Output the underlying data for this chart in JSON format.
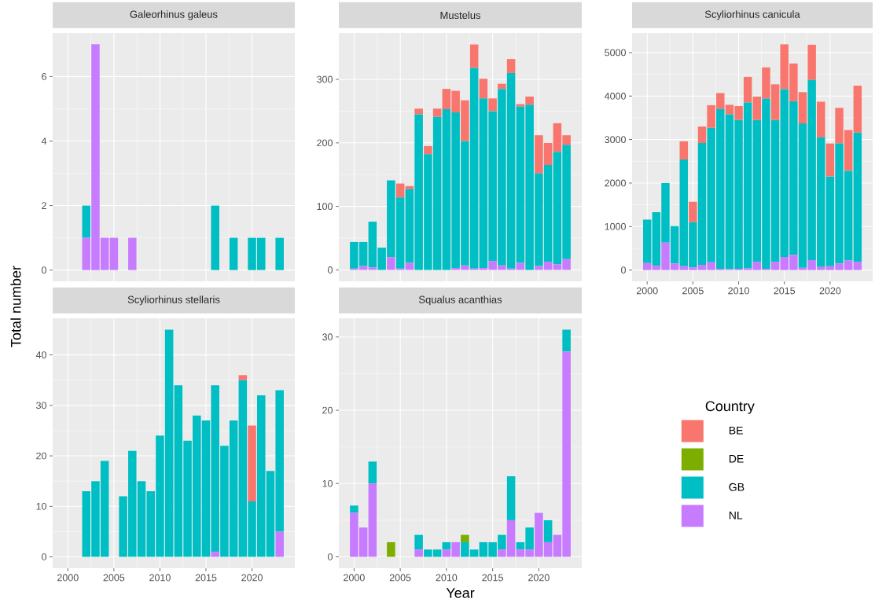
{
  "chart_data": [
    {
      "type": "bar",
      "title": "Galeorhinus galeus",
      "stacked": true,
      "grid": true,
      "tick_labels": "y",
      "ylabel": "Total number",
      "x": [
        2002,
        2003,
        2004,
        2005,
        2007,
        2016,
        2018,
        2020,
        2021,
        2023
      ],
      "xlim": [
        1998.35,
        2024.65
      ],
      "xticks": [
        2000,
        2005,
        2010,
        2015,
        2020
      ],
      "ylim": [
        -0.35,
        7.35
      ],
      "yticks": [
        0,
        2,
        4,
        6
      ],
      "series": [
        {
          "color": "#c77cff",
          "values": [
            1,
            7,
            1,
            1,
            1,
            null,
            null,
            null,
            null,
            null
          ]
        },
        {
          "color": "#00bfc4",
          "values": [
            1,
            null,
            null,
            null,
            null,
            2,
            1,
            1,
            1,
            1
          ]
        }
      ]
    },
    {
      "type": "bar",
      "title": "Mustelus",
      "stacked": true,
      "grid": true,
      "tick_labels": "y",
      "x": [
        2000,
        2001,
        2002,
        2003,
        2004,
        2005,
        2006,
        2007,
        2008,
        2009,
        2010,
        2011,
        2012,
        2013,
        2014,
        2015,
        2016,
        2017,
        2018,
        2019,
        2020,
        2021,
        2022,
        2023
      ],
      "xlim": [
        1998.35,
        2024.65
      ],
      "xticks": [
        2000,
        2005,
        2010,
        2015,
        2020
      ],
      "ylim": [
        -18,
        373
      ],
      "yticks": [
        0,
        100,
        200,
        300
      ],
      "series": [
        {
          "color": "#c77cff",
          "values": [
            2,
            6,
            4,
            null,
            20,
            2,
            11,
            null,
            null,
            null,
            null,
            3,
            7,
            2,
            3,
            14,
            7,
            2,
            11,
            null,
            6,
            13,
            9,
            17
          ]
        },
        {
          "color": "#00bfc4",
          "values": [
            42,
            38,
            72,
            35,
            121,
            112,
            116,
            245,
            182,
            241,
            253,
            245,
            196,
            316,
            267,
            236,
            278,
            308,
            246,
            260,
            146,
            152,
            177,
            180
          ]
        },
        {
          "color": "#f8766d",
          "values": [
            null,
            null,
            null,
            null,
            null,
            22,
            5,
            9,
            13,
            13,
            32,
            34,
            64,
            37,
            31,
            20,
            8,
            22,
            4,
            13,
            60,
            35,
            45,
            15
          ]
        }
      ]
    },
    {
      "type": "bar",
      "title": "Scyliorhinus canicula",
      "stacked": true,
      "grid": true,
      "x": [
        2000,
        2001,
        2002,
        2003,
        2004,
        2005,
        2006,
        2007,
        2008,
        2009,
        2010,
        2011,
        2012,
        2013,
        2014,
        2015,
        2016,
        2017,
        2018,
        2019,
        2020,
        2021,
        2022,
        2023
      ],
      "xlim": [
        1998.35,
        2024.65
      ],
      "xticks": [
        2000,
        2005,
        2010,
        2015,
        2020
      ],
      "ylim": [
        -260,
        5450
      ],
      "yticks": [
        0,
        1000,
        2000,
        3000,
        4000,
        5000
      ],
      "series": [
        {
          "color": "#c77cff",
          "values": [
            160,
            100,
            630,
            150,
            90,
            60,
            120,
            180,
            30,
            20,
            30,
            40,
            190,
            30,
            190,
            300,
            350,
            50,
            230,
            70,
            90,
            150,
            220,
            190
          ]
        },
        {
          "color": "#00bfc4",
          "values": [
            1000,
            1230,
            1370,
            860,
            2450,
            1040,
            2800,
            3090,
            3670,
            3560,
            3420,
            3810,
            3260,
            3910,
            3260,
            3860,
            3530,
            3320,
            4140,
            2980,
            2060,
            2760,
            2060,
            2970
          ]
        },
        {
          "color": "#f8766d",
          "values": [
            null,
            null,
            null,
            null,
            420,
            470,
            380,
            520,
            370,
            220,
            320,
            590,
            540,
            720,
            820,
            1030,
            870,
            720,
            810,
            820,
            760,
            820,
            940,
            1080
          ]
        }
      ]
    },
    {
      "type": "bar",
      "title": "Scyliorhinus stellaris",
      "stacked": true,
      "grid": true,
      "x": [
        2002,
        2003,
        2004,
        2006,
        2007,
        2008,
        2009,
        2010,
        2011,
        2012,
        2013,
        2014,
        2015,
        2016,
        2017,
        2018,
        2019,
        2020,
        2021,
        2022,
        2023
      ],
      "xlim": [
        1998.35,
        2024.65
      ],
      "xticks": [
        2000,
        2005,
        2010,
        2015,
        2020
      ],
      "ylim": [
        -2.25,
        47.25
      ],
      "yticks": [
        0,
        10,
        20,
        30,
        40
      ],
      "series": [
        {
          "color": "#c77cff",
          "values": [
            null,
            null,
            null,
            null,
            null,
            null,
            null,
            null,
            null,
            null,
            null,
            null,
            null,
            1,
            null,
            null,
            null,
            null,
            null,
            null,
            5
          ]
        },
        {
          "color": "#00bfc4",
          "values": [
            13,
            15,
            19,
            12,
            21,
            15,
            13,
            24,
            45,
            34,
            23,
            28,
            27,
            33,
            22,
            27,
            35,
            11,
            32,
            17,
            28
          ]
        },
        {
          "color": "#f8766d",
          "values": [
            null,
            null,
            null,
            null,
            null,
            null,
            null,
            null,
            null,
            null,
            null,
            null,
            null,
            null,
            null,
            null,
            1,
            15,
            null,
            null,
            null
          ]
        }
      ]
    },
    {
      "type": "bar",
      "title": "Squalus acanthias",
      "stacked": true,
      "grid": true,
      "xlabel": "Year",
      "legend": "right",
      "legend_title": "Country",
      "x": [
        2000,
        2001,
        2002,
        2004,
        2007,
        2008,
        2009,
        2010,
        2011,
        2012,
        2013,
        2014,
        2015,
        2016,
        2017,
        2018,
        2019,
        2020,
        2021,
        2022,
        2023
      ],
      "xlim": [
        1998.35,
        2024.65
      ],
      "xticks": [
        2000,
        2005,
        2010,
        2015,
        2020
      ],
      "ylim": [
        -1.55,
        32.55
      ],
      "yticks": [
        0,
        10,
        20,
        30
      ],
      "series": [
        {
          "name": "NL",
          "color": "#c77cff",
          "values": [
            6,
            4,
            10,
            null,
            1,
            null,
            null,
            1,
            2,
            null,
            null,
            null,
            null,
            1,
            5,
            1,
            1,
            6,
            2,
            3,
            28
          ]
        },
        {
          "name": "GB",
          "color": "#00bfc4",
          "values": [
            1,
            null,
            3,
            null,
            2,
            1,
            1,
            1,
            null,
            2,
            1,
            2,
            2,
            2,
            6,
            1,
            3,
            null,
            3,
            null,
            3
          ]
        },
        {
          "name": "DE",
          "color": "#7cae00",
          "values": [
            null,
            null,
            null,
            2,
            null,
            null,
            null,
            null,
            null,
            1,
            null,
            null,
            null,
            null,
            null,
            null,
            null,
            null,
            null,
            null,
            null
          ]
        },
        {
          "name": "BE",
          "color": "#f8766d",
          "values": [
            null,
            null,
            null,
            null,
            null,
            null,
            null,
            null,
            null,
            null,
            null,
            null,
            null,
            null,
            null,
            null,
            null,
            null,
            null,
            null,
            null
          ]
        }
      ]
    }
  ]
}
